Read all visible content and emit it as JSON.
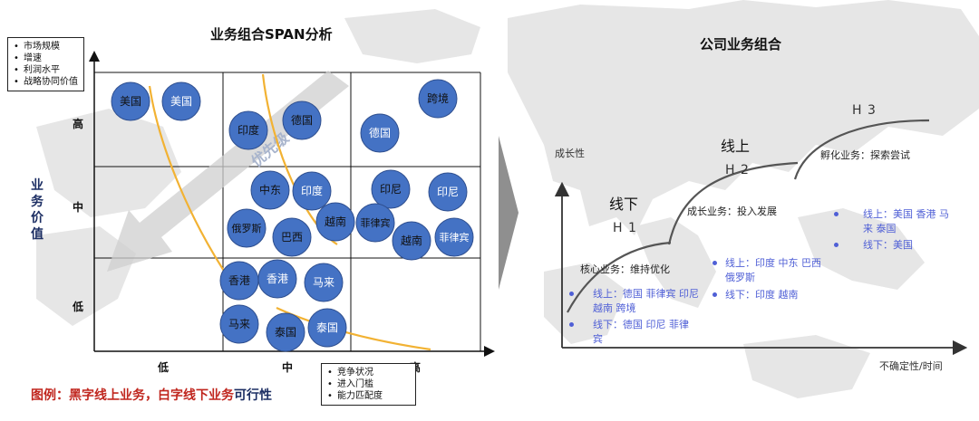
{
  "left": {
    "title": "业务组合SPAN分析",
    "criteria_box": [
      "市场规模",
      "增速",
      "利润水平",
      "战略协同价值"
    ],
    "y_axis_title": "业务价值",
    "y_ticks": [
      "高",
      "中",
      "低"
    ],
    "x_ticks": [
      "低",
      "中",
      "高"
    ],
    "x_criteria_box": [
      "竞争状况",
      "进入门槛",
      "能力匹配度"
    ],
    "priority_label": "优先级",
    "bubble_color": "#4472c4",
    "curve_color": "#f2b233",
    "bubbles": [
      {
        "label": "美国",
        "online": true
      },
      {
        "label": "美国",
        "online": false
      },
      {
        "label": "印度",
        "online": true
      },
      {
        "label": "德国",
        "online": true
      },
      {
        "label": "德国",
        "online": false
      },
      {
        "label": "跨境",
        "online": true
      },
      {
        "label": "中东",
        "online": true
      },
      {
        "label": "印度",
        "online": false
      },
      {
        "label": "印尼",
        "online": true
      },
      {
        "label": "印尼",
        "online": false
      },
      {
        "label": "俄罗斯",
        "online": true
      },
      {
        "label": "巴西",
        "online": true
      },
      {
        "label": "越南",
        "online": true
      },
      {
        "label": "菲律宾",
        "online": true
      },
      {
        "label": "越南",
        "online": true
      },
      {
        "label": "菲律宾",
        "online": false
      },
      {
        "label": "香港",
        "online": true
      },
      {
        "label": "香港",
        "online": false
      },
      {
        "label": "马来",
        "online": false
      },
      {
        "label": "马来",
        "online": true
      },
      {
        "label": "泰国",
        "online": true
      },
      {
        "label": "泰国",
        "online": false
      }
    ],
    "caption_main": "图例：黑字线上业务，白字线下业务",
    "caption_tail": "可行性"
  },
  "right": {
    "title": "公司业务组合",
    "y_axis_label": "成长性",
    "x_axis_label": "不确定性/时间",
    "h1": {
      "stage": "线下",
      "code": "H 1",
      "desc": "核心业务：维持优化"
    },
    "h2": {
      "stage": "线上",
      "code": "H 2",
      "desc": "成长业务：投入发展"
    },
    "h3": {
      "code": "H 3",
      "desc": "孵化业务：探索尝试"
    },
    "h1_online": "线上：德国 菲律宾 印尼 越南 跨境",
    "h1_offline": "线下：德国 印尼 菲律宾",
    "h2_online": "线上：印度 中东 巴西 俄罗斯",
    "h2_offline": "线下：印度 越南",
    "h3_online": "线上：美国 香港 马来 泰国",
    "h3_offline": "线下：美国",
    "text_blue": "#4f5fd6"
  }
}
